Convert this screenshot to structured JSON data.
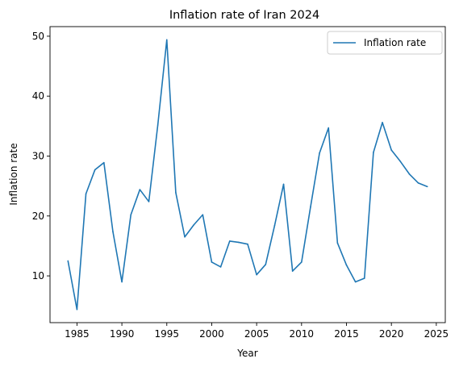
{
  "chart_data": {
    "type": "line",
    "title": "Inflation rate of Iran 2024",
    "xlabel": "Year",
    "ylabel": "Inflation rate",
    "xlim": [
      1982,
      2026
    ],
    "ylim": [
      2.2,
      51.6
    ],
    "xticks": [
      1985,
      1990,
      1995,
      2000,
      2005,
      2010,
      2015,
      2020,
      2025
    ],
    "yticks": [
      10,
      20,
      30,
      40,
      50
    ],
    "grid": false,
    "legend": "top-right",
    "series": [
      {
        "name": "Inflation rate",
        "color": "#1f77b4",
        "x": [
          1984,
          1985,
          1986,
          1987,
          1988,
          1989,
          1990,
          1991,
          1992,
          1993,
          1994,
          1995,
          1996,
          1997,
          1998,
          1999,
          2000,
          2001,
          2002,
          2003,
          2004,
          2005,
          2006,
          2007,
          2008,
          2009,
          2010,
          2011,
          2012,
          2013,
          2014,
          2015,
          2016,
          2017,
          2018,
          2019,
          2020,
          2021,
          2022,
          2023,
          2024
        ],
        "y": [
          12.5,
          4.4,
          23.7,
          27.7,
          28.9,
          17.4,
          9.0,
          20.2,
          24.4,
          22.4,
          35.2,
          49.4,
          23.9,
          16.5,
          18.5,
          20.2,
          12.3,
          11.5,
          15.8,
          15.6,
          15.3,
          10.2,
          11.9,
          18.4,
          25.3,
          10.8,
          12.3,
          21.5,
          30.5,
          34.7,
          15.5,
          11.8,
          9.0,
          9.6,
          30.6,
          35.6,
          31.0,
          29.1,
          27.0,
          25.5,
          24.9
        ]
      }
    ]
  }
}
